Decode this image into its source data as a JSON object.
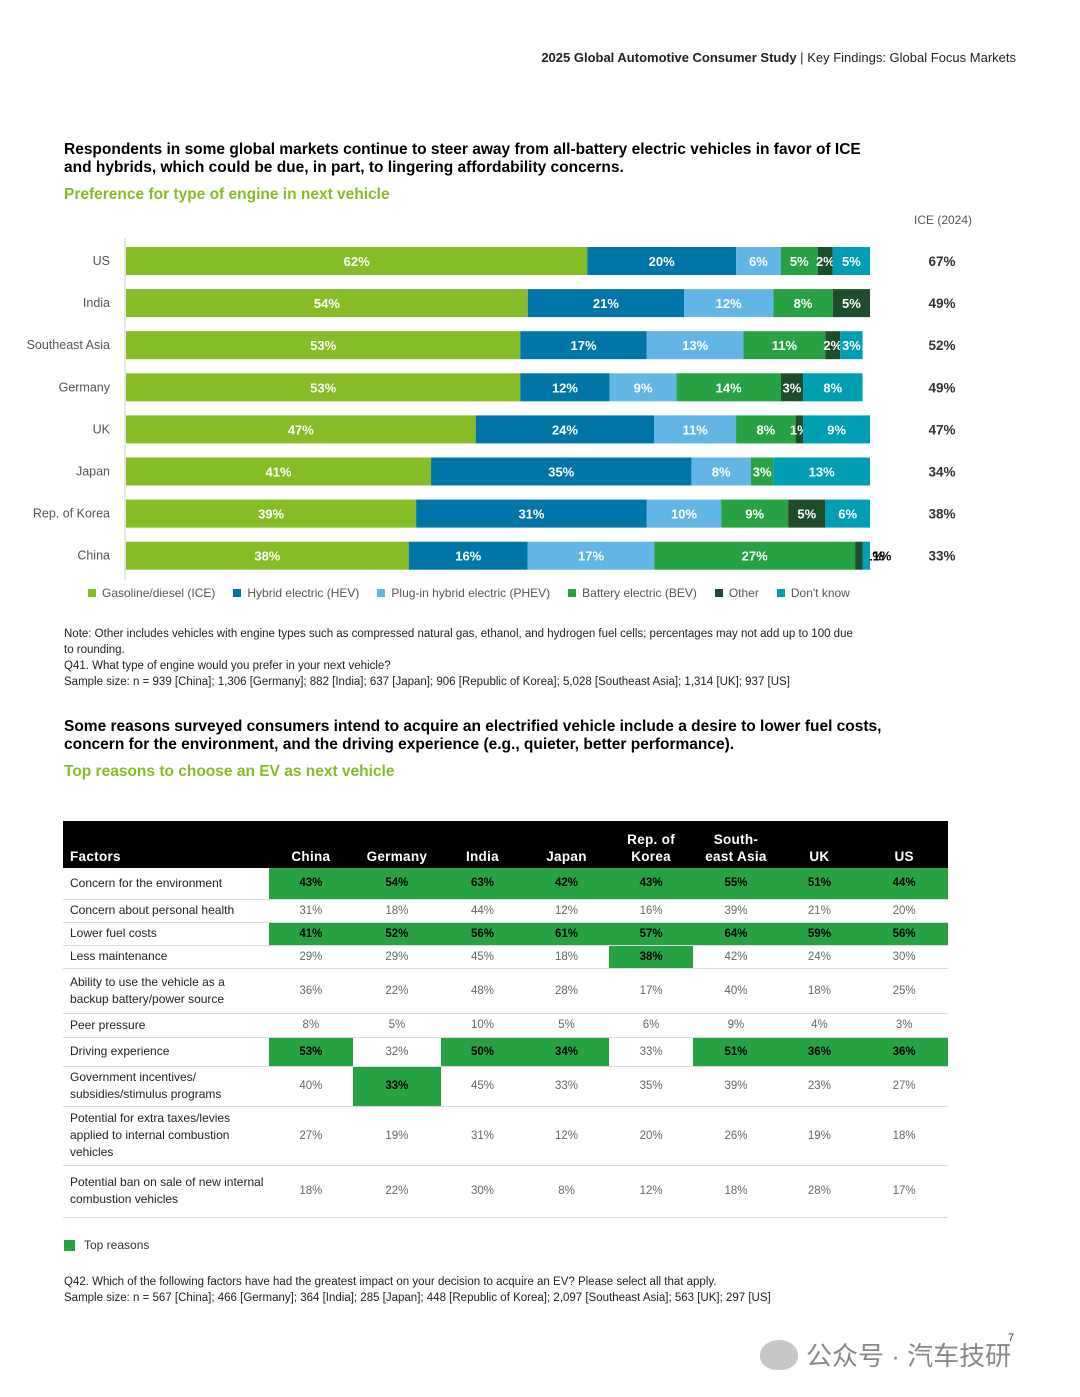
{
  "header": {
    "bold": "2025 Global Automotive Consumer Study",
    "sep": "|",
    "rest": "Key Findings: Global Focus Markets"
  },
  "section1": {
    "headline": "Respondents in some global markets continue to steer away from all-battery electric vehicles in favor of ICE and hybrids, which could be due, in part, to lingering affordability concerns.",
    "subhead": "Preference for type of engine in next vehicle",
    "ice_header": "ICE (2024)",
    "note": "Note: Other includes vehicles with engine types such as compressed natural gas, ethanol, and hydrogen fuel cells; percentages may not add up to 100 due to rounding.",
    "question": "Q41. What type of engine would you prefer in your next vehicle?",
    "sample": "Sample size: n = 939 [China]; 1,306 [Germany]; 882 [India]; 637 [Japan]; 906 [Republic of Korea]; 5,028 [Southeast Asia]; 1,314 [UK]; 937 [US]"
  },
  "chart_data": {
    "type": "bar",
    "orientation": "horizontal-stacked-100",
    "categories": [
      "US",
      "India",
      "Southeast Asia",
      "Germany",
      "UK",
      "Japan",
      "Rep. of Korea",
      "China"
    ],
    "series": [
      {
        "name": "Gasoline/diesel (ICE)",
        "color": "#86bc25",
        "values": [
          62,
          54,
          53,
          53,
          47,
          41,
          39,
          38
        ]
      },
      {
        "name": "Hybrid electric (HEV)",
        "color": "#0076a8",
        "values": [
          20,
          21,
          17,
          12,
          24,
          35,
          31,
          16
        ]
      },
      {
        "name": "Plug-in hybrid electric (PHEV)",
        "color": "#62b5e5",
        "values": [
          6,
          12,
          13,
          9,
          11,
          8,
          10,
          17
        ]
      },
      {
        "name": "Battery electric (BEV)",
        "color": "#26a242",
        "values": [
          5,
          8,
          11,
          14,
          8,
          3,
          9,
          27
        ]
      },
      {
        "name": "Other",
        "color": "#1e4d2b",
        "values": [
          2,
          5,
          2,
          3,
          1,
          0,
          5,
          1
        ]
      },
      {
        "name": "Don't know",
        "color": "#009eb4",
        "values": [
          5,
          0,
          3,
          8,
          9,
          13,
          6,
          1
        ]
      }
    ],
    "ice_2024": [
      "67%",
      "49%",
      "52%",
      "49%",
      "47%",
      "34%",
      "38%",
      "33%"
    ],
    "xlim": [
      0,
      100
    ]
  },
  "section2": {
    "headline": "Some reasons surveyed consumers intend to acquire an electrified vehicle include a desire to lower fuel costs, concern for the environment, and the driving experience (e.g., quieter, better performance).",
    "subhead": "Top reasons to choose an EV as next vehicle",
    "columns": [
      "Factors",
      "China",
      "Germany",
      "India",
      "Japan",
      "Rep. of Korea",
      "South-east Asia",
      "UK",
      "US"
    ],
    "rows": [
      {
        "factor": "Concern for the environment",
        "values": [
          "43%",
          "54%",
          "63%",
          "42%",
          "43%",
          "55%",
          "51%",
          "44%"
        ],
        "top": [
          1,
          1,
          1,
          1,
          1,
          1,
          1,
          1
        ]
      },
      {
        "factor": "Concern about personal health",
        "values": [
          "31%",
          "18%",
          "44%",
          "12%",
          "16%",
          "39%",
          "21%",
          "20%"
        ],
        "top": [
          0,
          0,
          0,
          0,
          0,
          0,
          0,
          0
        ]
      },
      {
        "factor": "Lower fuel costs",
        "values": [
          "41%",
          "52%",
          "56%",
          "61%",
          "57%",
          "64%",
          "59%",
          "56%"
        ],
        "top": [
          1,
          1,
          1,
          1,
          1,
          1,
          1,
          1
        ]
      },
      {
        "factor": "Less maintenance",
        "values": [
          "29%",
          "29%",
          "45%",
          "18%",
          "38%",
          "42%",
          "24%",
          "30%"
        ],
        "top": [
          0,
          0,
          0,
          0,
          1,
          0,
          0,
          0
        ]
      },
      {
        "factor": "Ability to use the vehicle as a backup battery/power source",
        "values": [
          "36%",
          "22%",
          "48%",
          "28%",
          "17%",
          "40%",
          "18%",
          "25%"
        ],
        "top": [
          0,
          0,
          0,
          0,
          0,
          0,
          0,
          0
        ]
      },
      {
        "factor": "Peer pressure",
        "values": [
          "8%",
          "5%",
          "10%",
          "5%",
          "6%",
          "9%",
          "4%",
          "3%"
        ],
        "top": [
          0,
          0,
          0,
          0,
          0,
          0,
          0,
          0
        ]
      },
      {
        "factor": "Driving experience",
        "values": [
          "53%",
          "32%",
          "50%",
          "34%",
          "33%",
          "51%",
          "36%",
          "36%"
        ],
        "top": [
          1,
          0,
          1,
          1,
          0,
          1,
          1,
          1
        ]
      },
      {
        "factor": "Government incentives/ subsidies/stimulus programs",
        "values": [
          "40%",
          "33%",
          "45%",
          "33%",
          "35%",
          "39%",
          "23%",
          "27%"
        ],
        "top": [
          0,
          1,
          0,
          0,
          0,
          0,
          0,
          0
        ]
      },
      {
        "factor": "Potential for extra taxes/levies applied to internal combustion vehicles",
        "values": [
          "27%",
          "19%",
          "31%",
          "12%",
          "20%",
          "26%",
          "19%",
          "18%"
        ],
        "top": [
          0,
          0,
          0,
          0,
          0,
          0,
          0,
          0
        ]
      },
      {
        "factor": "Potential ban on sale of new internal combustion vehicles",
        "values": [
          "18%",
          "22%",
          "30%",
          "8%",
          "12%",
          "18%",
          "28%",
          "17%"
        ],
        "top": [
          0,
          0,
          0,
          0,
          0,
          0,
          0,
          0
        ]
      }
    ],
    "legend": "Top reasons",
    "highlight_color": "#26a242",
    "question": "Q42. Which of the following factors have had the greatest impact on your decision to acquire an EV? Please select all that apply.",
    "sample": "Sample size: n = 567 [China]; 466 [Germany]; 364 [India]; 285 [Japan]; 448 [Republic of Korea]; 2,097 [Southeast Asia]; 563 [UK]; 297 [US]"
  },
  "footer": {
    "page": "7",
    "watermark": "公众号 · 汽车技研"
  }
}
